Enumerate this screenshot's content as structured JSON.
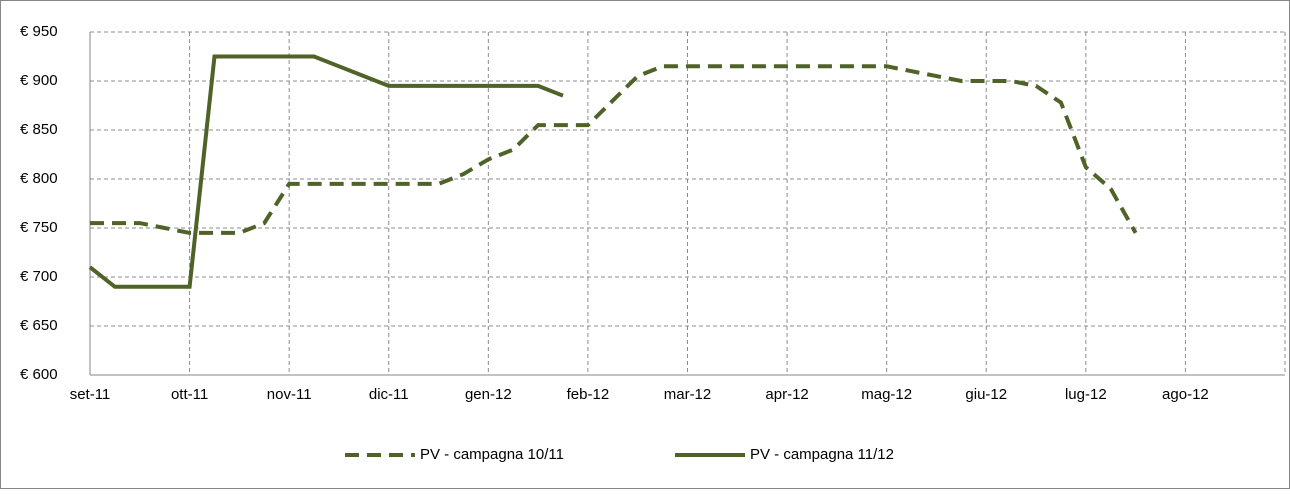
{
  "chart_data": {
    "type": "line",
    "categories": [
      "set-11",
      null,
      null,
      null,
      "ott-11",
      null,
      null,
      null,
      "nov-11",
      null,
      null,
      null,
      "dic-11",
      null,
      null,
      null,
      "gen-12",
      null,
      null,
      null,
      "feb-12",
      null,
      null,
      null,
      "mar-12",
      null,
      null,
      null,
      "apr-12",
      null,
      null,
      null,
      "mag-12",
      null,
      null,
      null,
      "giu-12",
      null,
      null,
      null,
      "lug-12",
      null,
      null,
      null,
      "ago-12",
      null,
      null,
      null
    ],
    "series": [
      {
        "name": "PV - campagna 10/11",
        "color": "#4f6228",
        "dash": true,
        "values": [
          755,
          755,
          755,
          750,
          745,
          745,
          745,
          755,
          795,
          795,
          795,
          795,
          795,
          795,
          795,
          805,
          820,
          830,
          855,
          855,
          855,
          880,
          905,
          915,
          915,
          915,
          915,
          915,
          915,
          915,
          915,
          915,
          915,
          910,
          905,
          900,
          900,
          900,
          895,
          878,
          812,
          790,
          745,
          null,
          null,
          null,
          null,
          null
        ]
      },
      {
        "name": "PV - campagna 11/12",
        "color": "#4f6228",
        "dash": false,
        "values": [
          710,
          690,
          690,
          690,
          690,
          925,
          925,
          925,
          925,
          925,
          915,
          905,
          895,
          895,
          895,
          895,
          895,
          895,
          895,
          885,
          null,
          null,
          null,
          null,
          null,
          null,
          null,
          null,
          null,
          null,
          null,
          null,
          null,
          null,
          null,
          null,
          null,
          null,
          null,
          null,
          null,
          null,
          null,
          null,
          null,
          null,
          null,
          null
        ]
      }
    ],
    "ylim": [
      600,
      950
    ],
    "yticks": [
      {
        "value": 600,
        "label": "€ 600"
      },
      {
        "value": 650,
        "label": "€ 650"
      },
      {
        "value": 700,
        "label": "€ 700"
      },
      {
        "value": 750,
        "label": "€ 750"
      },
      {
        "value": 800,
        "label": "€ 800"
      },
      {
        "value": 850,
        "label": "€ 850"
      },
      {
        "value": 900,
        "label": "€ 900"
      },
      {
        "value": 950,
        "label": "€ 950"
      }
    ],
    "grid": true,
    "legend": "bottom"
  }
}
